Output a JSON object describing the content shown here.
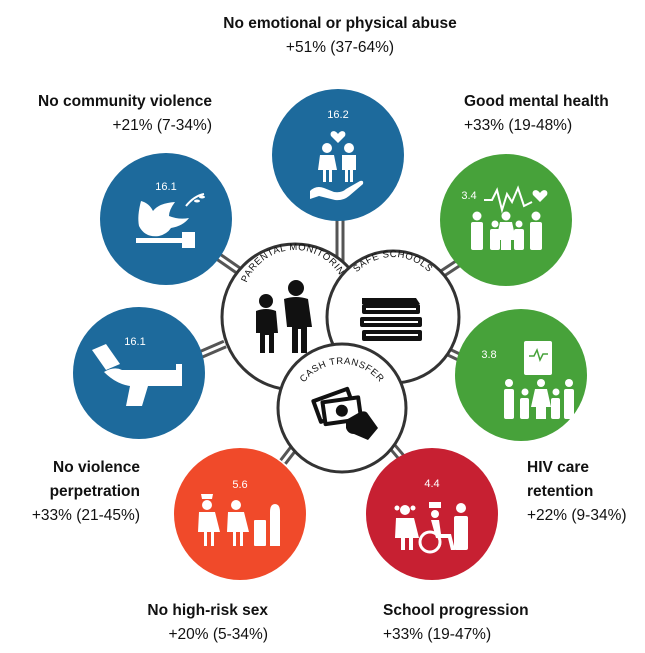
{
  "outcomes": [
    {
      "title": "No emotional or physical abuse",
      "value": "+51% (37-64%)",
      "sdg": "16.2",
      "color": "#1d6a9c"
    },
    {
      "title": "No community violence",
      "value": "+21% (7-34%)",
      "sdg": "16.1",
      "color": "#1d6a9c"
    },
    {
      "title": "Good mental health",
      "value": "+33% (19-48%)",
      "sdg": "3.4",
      "color": "#47a23a"
    },
    {
      "title_1": "No violence",
      "title_2": "perpetration",
      "value": "+33% (21-45%)",
      "sdg": "16.1",
      "color": "#1d6a9c"
    },
    {
      "title_1": "HIV care",
      "title_2": "retention",
      "value": "+22% (9-34%)",
      "sdg": "3.8",
      "color": "#47a23a"
    },
    {
      "title": "No high-risk sex",
      "value": "+20% (5-34%)",
      "sdg": "5.6",
      "color": "#f04a2a"
    },
    {
      "title": "School progression",
      "value": "+33% (19-47%)",
      "sdg": "4.4",
      "color": "#c72032"
    }
  ],
  "interventions": {
    "parental": "PARENTAL MONITORING",
    "schools": "SAFE SCHOOLS",
    "cash": "CASH TRANSFER"
  }
}
